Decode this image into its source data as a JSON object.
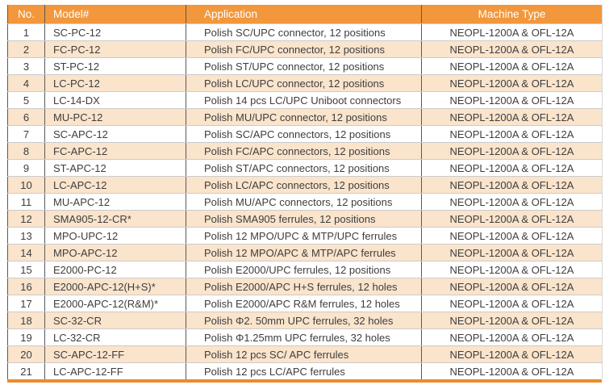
{
  "colors": {
    "header_bg": "#F2973B",
    "header_text": "#FFFFFF",
    "row_alt_bg": "#FAE4CC",
    "row_bg": "#FFFFFF",
    "bottom_bar": "#EA8C2F",
    "divider": "#58595B",
    "row_border": "#CCCBCB",
    "text": "#3E3E3E",
    "right_border": "#D9D9D9"
  },
  "table": {
    "headers": [
      "No.",
      "Model#",
      "Application",
      "Machine Type"
    ],
    "rows": [
      [
        "1",
        "SC-PC-12",
        "Polish SC/UPC connector, 12 positions",
        "NEOPL-1200A & OFL-12A"
      ],
      [
        "2",
        "FC-PC-12",
        "Polish FC/UPC connector, 12 positions",
        "NEOPL-1200A & OFL-12A"
      ],
      [
        "3",
        "ST-PC-12",
        "Polish ST/UPC connector, 12 positions",
        "NEOPL-1200A & OFL-12A"
      ],
      [
        "4",
        "LC-PC-12",
        "Polish LC/UPC connector, 12 positions",
        "NEOPL-1200A & OFL-12A"
      ],
      [
        "5",
        "LC-14-DX",
        "Polish 14 pcs LC/UPC Uniboot connectors",
        "NEOPL-1200A & OFL-12A"
      ],
      [
        "6",
        "MU-PC-12",
        "Polish MU/UPC connector, 12 positions",
        "NEOPL-1200A & OFL-12A"
      ],
      [
        "7",
        "SC-APC-12",
        "Polish SC/APC connectors, 12 positions",
        "NEOPL-1200A & OFL-12A"
      ],
      [
        "8",
        "FC-APC-12",
        "Polish FC/APC connectors, 12  positions",
        "NEOPL-1200A & OFL-12A"
      ],
      [
        "9",
        "ST-APC-12",
        "Polish ST/APC connectors, 12 positions",
        "NEOPL-1200A & OFL-12A"
      ],
      [
        "10",
        "LC-APC-12",
        "Polish LC/APC connectors, 12 positions",
        "NEOPL-1200A & OFL-12A"
      ],
      [
        "11",
        "MU-APC-12",
        "Polish MU/APC connectors, 12 positions",
        "NEOPL-1200A & OFL-12A"
      ],
      [
        "12",
        "SMA905-12-CR*",
        "Polish SMA905 ferrules, 12 positions",
        "NEOPL-1200A & OFL-12A"
      ],
      [
        "13",
        "MPO-UPC-12",
        "Polish 12 MPO/UPC & MTP/UPC ferrules",
        "NEOPL-1200A & OFL-12A"
      ],
      [
        "14",
        "MPO-APC-12",
        "Polish 12 MPO/APC & MTP/APC ferrules",
        "NEOPL-1200A & OFL-12A"
      ],
      [
        "15",
        "E2000-PC-12",
        "Polish E2000/UPC ferrules, 12 positions",
        "NEOPL-1200A & OFL-12A"
      ],
      [
        "16",
        "E2000-APC-12(H+S)*",
        "Polish E2000/APC H+S ferrules, 12 holes",
        "NEOPL-1200A & OFL-12A"
      ],
      [
        "17",
        "E2000-APC-12(R&M)*",
        "Polish E2000/APC R&M ferrules, 12 holes",
        "NEOPL-1200A & OFL-12A"
      ],
      [
        "18",
        "SC-32-CR",
        "Polish Φ2. 50mm UPC ferrules, 32 holes",
        "NEOPL-1200A & OFL-12A"
      ],
      [
        "19",
        "LC-32-CR",
        "Polish Φ1.25mm UPC ferrules, 32 holes",
        "NEOPL-1200A & OFL-12A"
      ],
      [
        "20",
        "SC-APC-12-FF",
        "Polish 12 pcs SC/ APC ferrules",
        "NEOPL-1200A & OFL-12A"
      ],
      [
        "21",
        "LC-APC-12-FF",
        "Polish 12 pcs LC/APC ferrules",
        "NEOPL-1200A & OFL-12A"
      ]
    ]
  }
}
